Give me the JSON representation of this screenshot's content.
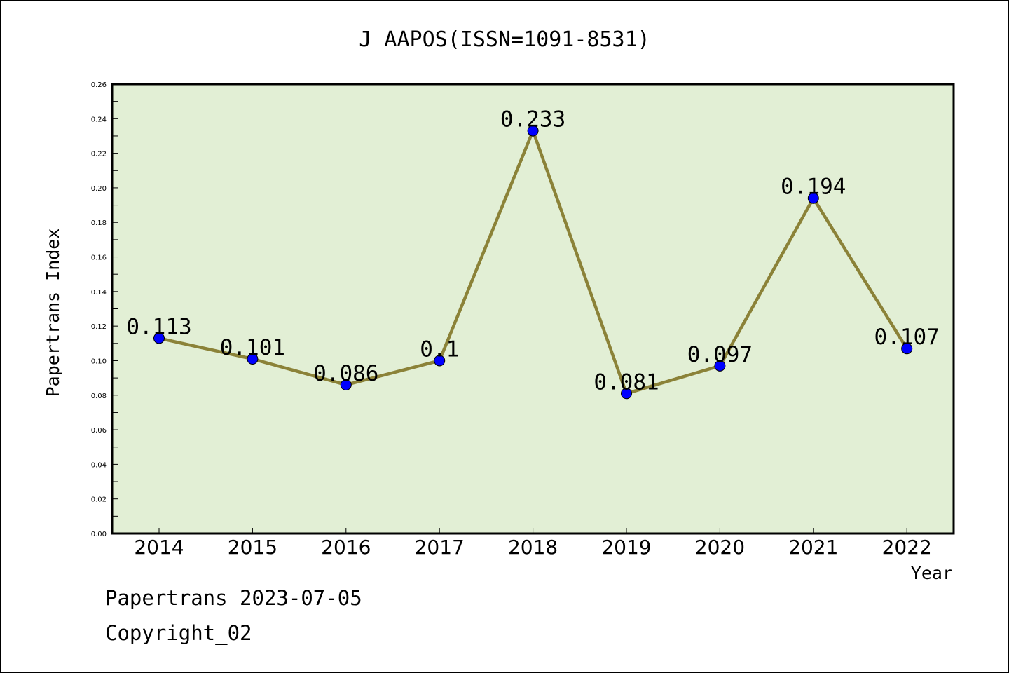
{
  "chart_data": {
    "type": "line",
    "title": "J AAPOS(ISSN=1091-8531)",
    "xlabel": "Year",
    "ylabel": "Papertrans Index",
    "categories": [
      "2014",
      "2015",
      "2016",
      "2017",
      "2018",
      "2019",
      "2020",
      "2021",
      "2022"
    ],
    "values": [
      0.113,
      0.101,
      0.086,
      0.1,
      0.233,
      0.081,
      0.097,
      0.194,
      0.107
    ],
    "data_labels": [
      "0.113",
      "0.101",
      "0.086",
      "0.1",
      "0.233",
      "0.081",
      "0.097",
      "0.194",
      "0.107"
    ],
    "ylim": [
      0,
      0.26
    ],
    "yticks": [
      "0.00",
      "0.02",
      "0.04",
      "0.06",
      "0.08",
      "0.10",
      "0.12",
      "0.14",
      "0.16",
      "0.18",
      "0.20",
      "0.22",
      "0.24",
      "0.26"
    ],
    "grid": false,
    "legend": "none",
    "colors": {
      "plot_background": "#e2efd5",
      "line": "#8b8238",
      "marker": "#0000ff"
    }
  },
  "footer": {
    "line1": "Papertrans 2023-07-05",
    "line2": "Copyright_02"
  }
}
